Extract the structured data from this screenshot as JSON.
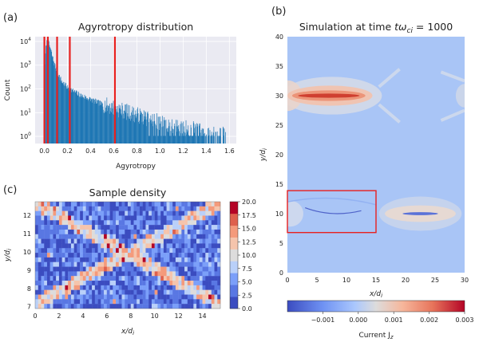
{
  "panel_labels": [
    "(a)",
    "(b)",
    "(c)"
  ],
  "chart_data": [
    {
      "type": "bar",
      "id": "histogram",
      "title": "Agyrotropy distribution",
      "xlabel": "Agyrotropy",
      "ylabel": "Count",
      "xlim": [
        -0.08,
        1.66
      ],
      "ylim_log10": [
        -0.3,
        4.2
      ],
      "y_scale": "log",
      "x_ticks": [
        "0.0",
        "0.2",
        "0.4",
        "0.6",
        "0.8",
        "1.0",
        "1.2",
        "1.4",
        "1.6"
      ],
      "x_tick_values": [
        0,
        0.2,
        0.4,
        0.6,
        0.8,
        1.0,
        1.2,
        1.4,
        1.6
      ],
      "y_ticks": [
        {
          "base": "10",
          "exp": "0",
          "value": 1
        },
        {
          "base": "10",
          "exp": "1",
          "value": 10
        },
        {
          "base": "10",
          "exp": "2",
          "value": 100
        },
        {
          "base": "10",
          "exp": "3",
          "value": 1000
        },
        {
          "base": "10",
          "exp": "4",
          "value": 10000
        }
      ],
      "grid": true,
      "background": "#eaeaf2",
      "bar_color": "#1f77b4",
      "profile_x": [
        0.0,
        0.005,
        0.015,
        0.03,
        0.05,
        0.07,
        0.1,
        0.15,
        0.2,
        0.3,
        0.4,
        0.5,
        0.6,
        0.7,
        0.8,
        0.9,
        1.0,
        1.1,
        1.2,
        1.3,
        1.4,
        1.5,
        1.58
      ],
      "profile_log": [
        1.8,
        3.3,
        3.95,
        4.0,
        3.7,
        3.3,
        2.8,
        2.3,
        2.05,
        1.75,
        1.55,
        1.35,
        1.2,
        1.05,
        0.9,
        0.75,
        0.6,
        0.48,
        0.38,
        0.28,
        0.15,
        0.08,
        0.05
      ],
      "red_lines": [
        0.0,
        0.03,
        0.11,
        0.22,
        0.61
      ],
      "red_line_color": "#e8201f"
    },
    {
      "type": "heatmap",
      "id": "simulation",
      "title_prefix": "Simulation at time ",
      "title_math": "tω",
      "title_sub": "ci",
      "title_value": " = 1000",
      "xlabel": "x/d",
      "xlabel_sub": "i",
      "ylabel": "y/d",
      "ylabel_sub": "i",
      "xlim": [
        0,
        30
      ],
      "ylim": [
        0,
        40
      ],
      "x_ticks": [
        "0",
        "5",
        "10",
        "15",
        "20",
        "25",
        "30"
      ],
      "x_tick_values": [
        0,
        5,
        10,
        15,
        20,
        25,
        30
      ],
      "y_ticks": [
        "0",
        "5",
        "10",
        "15",
        "20",
        "25",
        "30",
        "35",
        "40"
      ],
      "y_tick_values": [
        0,
        5,
        10,
        15,
        20,
        25,
        30,
        35,
        40
      ],
      "highlight_box": {
        "x": [
          0,
          15
        ],
        "y": [
          6.8,
          13.9
        ],
        "color": "#e8201f"
      },
      "current_sheets": [
        {
          "y": 30,
          "x_center": 7.5,
          "x_half_width": 8.5,
          "peak": 0.0028
        },
        {
          "y": 10,
          "x_center": 22.5,
          "x_half_width": 7.0,
          "peak": 0.0009
        }
      ],
      "colorbar": {
        "label": "Current J",
        "label_sub": "z",
        "range": [
          -0.002,
          0.003
        ],
        "ticks": [
          "−0.001",
          "0.000",
          "0.001",
          "0.002",
          "0.003"
        ],
        "tick_values": [
          -0.001,
          0.0,
          0.001,
          0.002,
          0.003
        ],
        "colormap": "coolwarm"
      }
    },
    {
      "type": "heatmap",
      "id": "sample_density",
      "title": "Sample density",
      "xlabel": "x/d",
      "xlabel_sub": "i",
      "ylabel": "y/d",
      "ylabel_sub": "i",
      "xlim": [
        0,
        15.5
      ],
      "ylim": [
        6.9,
        12.75
      ],
      "x_ticks": [
        "0",
        "2",
        "4",
        "6",
        "8",
        "10",
        "12",
        "14"
      ],
      "x_tick_values": [
        0,
        2,
        4,
        6,
        8,
        10,
        12,
        14
      ],
      "y_ticks": [
        "7",
        "8",
        "9",
        "10",
        "11",
        "12"
      ],
      "y_tick_values": [
        7,
        8,
        9,
        10,
        11,
        12
      ],
      "grid_cols": 62,
      "grid_rows": 23,
      "x_structure": {
        "center_x": 7.75,
        "center_y": 9.9,
        "slope": 0.36
      },
      "colorbar": {
        "range": [
          0,
          20
        ],
        "ticks": [
          "0.0",
          "2.5",
          "5.0",
          "7.5",
          "10.0",
          "12.5",
          "15.0",
          "17.5",
          "20.0"
        ],
        "tick_values": [
          0,
          2.5,
          5,
          7.5,
          10,
          12.5,
          15,
          17.5,
          20
        ],
        "colors": [
          "#3b4cc0",
          "#5977e3",
          "#7b9ff9",
          "#b9d0f9",
          "#dddcdc",
          "#f5c4ac",
          "#f49a7b",
          "#de604d",
          "#b40426"
        ]
      }
    }
  ]
}
